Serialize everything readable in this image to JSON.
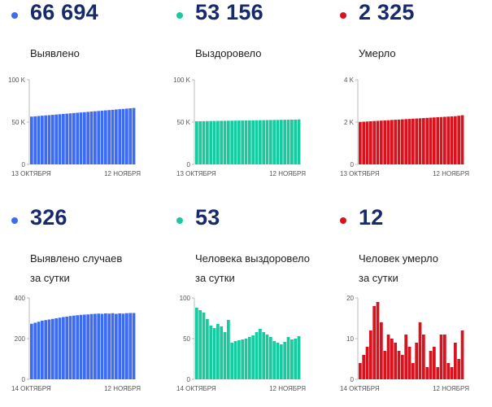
{
  "colors": {
    "blue": "#3d6cf2",
    "teal": "#19c9a0",
    "red": "#d7141e",
    "value_text": "#172a6b"
  },
  "panels": [
    {
      "value": "66 694",
      "label_lines": [
        "Выявлено"
      ],
      "color": "#3d6cf2"
    },
    {
      "value": "53 156",
      "label_lines": [
        "Выздоровело"
      ],
      "color": "#19c9a0"
    },
    {
      "value": "2 325",
      "label_lines": [
        "Умерло"
      ],
      "color": "#d7141e"
    },
    {
      "value": "326",
      "label_lines": [
        "Выявлено случаев",
        "за сутки"
      ],
      "color": "#3d6cf2"
    },
    {
      "value": "53",
      "label_lines": [
        "Человека выздоровело",
        "за сутки"
      ],
      "color": "#19c9a0"
    },
    {
      "value": "12",
      "label_lines": [
        "Человек умерло",
        "за сутки"
      ],
      "color": "#d7141e"
    }
  ],
  "chart_data": [
    {
      "type": "bar",
      "color": "#3d6cf2",
      "ylim": [
        0,
        100000
      ],
      "y_ticks": [
        {
          "value": 0,
          "label": "0"
        },
        {
          "value": 50000,
          "label": "50 K"
        },
        {
          "value": 100000,
          "label": "100 K"
        }
      ],
      "x_labels": [
        "13 ОКТЯБРЯ",
        "12 НОЯБРЯ"
      ],
      "values": [
        56500,
        56850,
        57200,
        57550,
        57900,
        58250,
        58600,
        58950,
        59300,
        59650,
        60000,
        60350,
        60700,
        61050,
        61400,
        61750,
        62100,
        62450,
        62800,
        63150,
        63500,
        63850,
        64200,
        64550,
        64900,
        65250,
        65600,
        65950,
        66300,
        66694
      ]
    },
    {
      "type": "bar",
      "color": "#19c9a0",
      "ylim": [
        0,
        100000
      ],
      "y_ticks": [
        {
          "value": 0,
          "label": "0"
        },
        {
          "value": 50000,
          "label": "50 K"
        },
        {
          "value": 100000,
          "label": "100 K"
        }
      ],
      "x_labels": [
        "13 ОКТЯБРЯ",
        "12 НОЯБРЯ"
      ],
      "values": [
        51000,
        51070,
        51140,
        51210,
        51280,
        51350,
        51420,
        51490,
        51560,
        51630,
        51700,
        51770,
        51840,
        51910,
        51980,
        52050,
        52120,
        52190,
        52260,
        52330,
        52400,
        52470,
        52540,
        52610,
        52680,
        52750,
        52820,
        52890,
        52960,
        53156
      ]
    },
    {
      "type": "bar",
      "color": "#d7141e",
      "ylim": [
        0,
        4000
      ],
      "y_ticks": [
        {
          "value": 0,
          "label": "0"
        },
        {
          "value": 2000,
          "label": "2 K"
        },
        {
          "value": 4000,
          "label": "4 K"
        }
      ],
      "x_labels": [
        "13 ОКТЯБРЯ",
        "12 НОЯБРЯ"
      ],
      "values": [
        2010,
        2020,
        2030,
        2040,
        2050,
        2060,
        2070,
        2080,
        2090,
        2100,
        2110,
        2120,
        2130,
        2140,
        2150,
        2160,
        2170,
        2180,
        2190,
        2200,
        2210,
        2220,
        2230,
        2240,
        2250,
        2260,
        2270,
        2280,
        2300,
        2325
      ]
    },
    {
      "type": "bar",
      "color": "#3d6cf2",
      "ylim": [
        0,
        400
      ],
      "y_ticks": [
        {
          "value": 0,
          "label": "0"
        },
        {
          "value": 200,
          "label": "200"
        },
        {
          "value": 400,
          "label": "400"
        }
      ],
      "x_labels": [
        "14 ОКТЯБРЯ",
        "12 НОЯБРЯ"
      ],
      "values": [
        273,
        278,
        283,
        288,
        291,
        294,
        297,
        300,
        303,
        306,
        308,
        311,
        313,
        315,
        317,
        318,
        319,
        321,
        322,
        323,
        322,
        324,
        323,
        325,
        322,
        324,
        323,
        325,
        326,
        326
      ]
    },
    {
      "type": "bar",
      "color": "#19c9a0",
      "ylim": [
        0,
        100
      ],
      "y_ticks": [
        {
          "value": 0,
          "label": "0"
        },
        {
          "value": 50,
          "label": "50"
        },
        {
          "value": 100,
          "label": "100"
        }
      ],
      "x_labels": [
        "14 ОКТЯБРЯ",
        "12 НОЯБРЯ"
      ],
      "values": [
        88,
        85,
        82,
        74,
        66,
        63,
        68,
        65,
        58,
        73,
        45,
        47,
        48,
        49,
        50,
        52,
        54,
        58,
        62,
        58,
        55,
        52,
        47,
        45,
        43,
        46,
        52,
        49,
        50,
        53
      ]
    },
    {
      "type": "bar",
      "color": "#d7141e",
      "ylim": [
        0,
        20
      ],
      "y_ticks": [
        {
          "value": 0,
          "label": "0"
        },
        {
          "value": 10,
          "label": "10"
        },
        {
          "value": 20,
          "label": "20"
        }
      ],
      "x_labels": [
        "14 ОКТЯБРЯ",
        "12 НОЯБРЯ"
      ],
      "values": [
        4,
        6,
        8,
        12,
        18,
        19,
        14,
        7,
        11,
        10,
        9,
        7,
        6,
        11,
        8,
        4,
        9,
        14,
        11,
        3,
        7,
        8,
        3,
        11,
        11,
        4,
        3,
        9,
        5,
        12
      ]
    }
  ]
}
